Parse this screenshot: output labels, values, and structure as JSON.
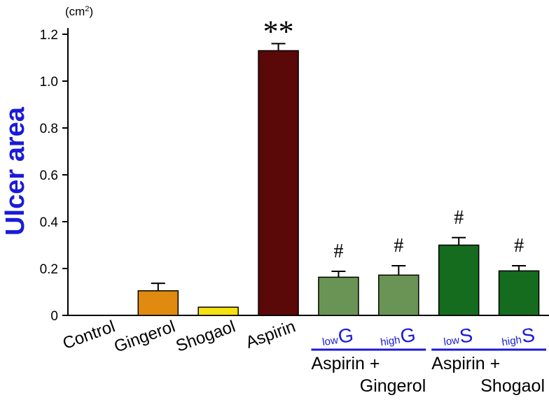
{
  "chart_data": {
    "type": "bar",
    "ylabel": "Ulcer area",
    "unit_prefix": "(cm",
    "unit_power": "2",
    "unit_suffix": ")",
    "ylim": [
      0,
      1.2
    ],
    "yticks": [
      {
        "value": 0,
        "label": "0"
      },
      {
        "value": 0.2,
        "label": "0.2"
      },
      {
        "value": 0.4,
        "label": "0.4"
      },
      {
        "value": 0.6,
        "label": "0.6"
      },
      {
        "value": 0.8,
        "label": "0.8"
      },
      {
        "value": 1.0,
        "label": "1.0"
      },
      {
        "value": 1.2,
        "label": "1.2"
      }
    ],
    "bars": [
      {
        "category": "Control",
        "value": 0.0,
        "error": 0.0,
        "color": "#ffffff",
        "marker": "",
        "label": "Control",
        "sub_small": "",
        "sub_big": ""
      },
      {
        "category": "Gingerol",
        "value": 0.105,
        "error": 0.032,
        "color": "#e08a10",
        "marker": "",
        "label": "Gingerol",
        "sub_small": "",
        "sub_big": ""
      },
      {
        "category": "Shogaol",
        "value": 0.035,
        "error": 0.0,
        "color": "#f5e010",
        "marker": "",
        "label": "Shogaol",
        "sub_small": "",
        "sub_big": ""
      },
      {
        "category": "Aspirin",
        "value": 1.13,
        "error": 0.03,
        "color": "#5a0808",
        "marker": "**",
        "label": "Aspirin",
        "sub_small": "",
        "sub_big": ""
      },
      {
        "category": "lowG",
        "value": 0.163,
        "error": 0.025,
        "color": "#6a9455",
        "marker": "#",
        "label": "",
        "sub_small": "low",
        "sub_big": "G"
      },
      {
        "category": "highG",
        "value": 0.172,
        "error": 0.04,
        "color": "#6a9455",
        "marker": "#",
        "label": "",
        "sub_small": "high",
        "sub_big": "G"
      },
      {
        "category": "lowS",
        "value": 0.3,
        "error": 0.032,
        "color": "#156b1e",
        "marker": "#",
        "label": "",
        "sub_small": "low",
        "sub_big": "S"
      },
      {
        "category": "highS",
        "value": 0.19,
        "error": 0.022,
        "color": "#156b1e",
        "marker": "#",
        "label": "",
        "sub_small": "high",
        "sub_big": "S"
      }
    ],
    "groups": [
      {
        "line1": "Aspirin +",
        "line2": "Gingerol",
        "first_bar": 4,
        "last_bar": 5
      },
      {
        "line1": "Aspirin +",
        "line2": "Shogaol",
        "first_bar": 6,
        "last_bar": 7
      }
    ],
    "colors": {
      "axis": "#000000",
      "group_line": "#1a1adb",
      "ylabel": "#1a1adb"
    }
  }
}
